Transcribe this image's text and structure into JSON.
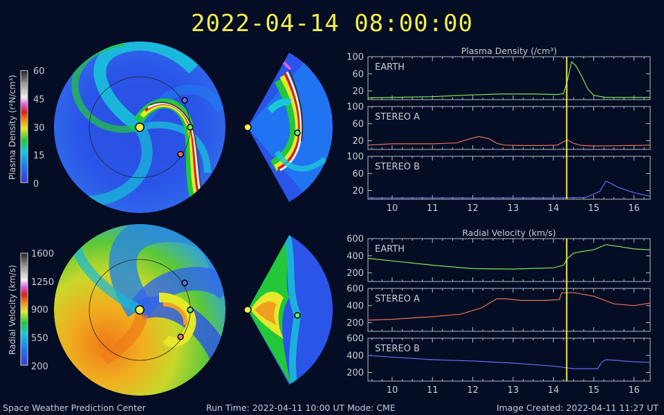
{
  "header": {
    "datetime": "2022-04-14 08:00:00"
  },
  "footer": {
    "org": "Space Weather Prediction Center",
    "run": "Run Time: 2022-04-11 10:00 UT   Mode: CME",
    "created": "Image Created: 2022-04-11 11:27 UT"
  },
  "colorbars": {
    "density": {
      "label": "Plasma Density (r²N/cm³)",
      "ticks": [
        "60",
        "45",
        "30",
        "15",
        "0"
      ]
    },
    "velocity": {
      "label": "Radial Velocity (km/s)",
      "ticks": [
        "1600",
        "1250",
        "900",
        "550",
        "200"
      ]
    }
  },
  "colors": {
    "earth": "#7ee85a",
    "stereo_a": "#e8735a",
    "stereo_b": "#6a6af0",
    "current_time_line": "#f2ee4a",
    "sun": "#f2ee4a"
  },
  "chart_data": [
    {
      "type": "line",
      "title": "Plasma Density (/cm³)",
      "x_ticks": [
        "10",
        "11",
        "12",
        "13",
        "14",
        "15",
        "16"
      ],
      "xlim": [
        9.4,
        16.4
      ],
      "current_time": 14.33,
      "panels": [
        {
          "name": "EARTH",
          "color": "#7ee85a",
          "ylim": [
            0,
            100
          ],
          "y_ticks": [
            "100",
            "60",
            "20"
          ],
          "x": [
            9.4,
            10,
            11,
            12,
            12.7,
            13.5,
            14.1,
            14.25,
            14.35,
            14.45,
            14.55,
            14.7,
            14.85,
            15,
            15.3,
            16,
            16.4
          ],
          "y": [
            4,
            5,
            7,
            11,
            13,
            13,
            12,
            14,
            45,
            88,
            80,
            55,
            25,
            10,
            5,
            5,
            5
          ]
        },
        {
          "name": "STEREO A",
          "color": "#e8735a",
          "ylim": [
            0,
            100
          ],
          "y_ticks": [
            "100",
            "60",
            "20"
          ],
          "x": [
            9.4,
            10,
            11,
            11.6,
            11.9,
            12.15,
            12.4,
            12.6,
            12.8,
            13.2,
            13.8,
            14.1,
            14.25,
            14.35,
            14.5,
            14.7,
            15,
            16,
            16.4
          ],
          "y": [
            10,
            13,
            13,
            15,
            24,
            30,
            25,
            14,
            10,
            9,
            9,
            10,
            18,
            22,
            14,
            9,
            8,
            9,
            10
          ]
        },
        {
          "name": "STEREO B",
          "color": "#6a6af0",
          "ylim": [
            0,
            100
          ],
          "y_ticks": [
            "100",
            "60",
            "20"
          ],
          "x": [
            9.4,
            10,
            11,
            12,
            13,
            14,
            14.8,
            15.15,
            15.3,
            15.4,
            15.6,
            16,
            16.4
          ],
          "y": [
            3,
            3,
            3,
            3,
            3,
            3,
            4,
            18,
            42,
            38,
            28,
            15,
            7
          ]
        }
      ]
    },
    {
      "type": "line",
      "title": "Radial Velocity (km/s)",
      "x_ticks": [
        "10",
        "11",
        "12",
        "13",
        "14",
        "15",
        "16"
      ],
      "xlim": [
        9.4,
        16.4
      ],
      "current_time": 14.33,
      "panels": [
        {
          "name": "EARTH",
          "color": "#7ee85a",
          "ylim": [
            100,
            600
          ],
          "y_ticks": [
            "600",
            "400",
            "200"
          ],
          "x": [
            9.4,
            10,
            11,
            12,
            13,
            14,
            14.25,
            14.35,
            14.5,
            14.7,
            15,
            15.3,
            15.6,
            16,
            16.4
          ],
          "y": [
            370,
            340,
            290,
            250,
            245,
            260,
            290,
            370,
            430,
            450,
            470,
            530,
            510,
            480,
            470
          ]
        },
        {
          "name": "STEREO A",
          "color": "#e8735a",
          "ylim": [
            100,
            600
          ],
          "y_ticks": [
            "600",
            "400",
            "200"
          ],
          "x": [
            9.4,
            10,
            11,
            11.7,
            12.2,
            12.6,
            12.8,
            13.2,
            13.8,
            14.15,
            14.2,
            14.5,
            15,
            15.5,
            16,
            16.4
          ],
          "y": [
            230,
            240,
            270,
            300,
            370,
            480,
            480,
            460,
            460,
            470,
            550,
            550,
            510,
            420,
            400,
            430
          ]
        },
        {
          "name": "STEREO B",
          "color": "#6a6af0",
          "ylim": [
            100,
            600
          ],
          "y_ticks": [
            "600",
            "400",
            "200"
          ],
          "x": [
            9.4,
            10,
            11,
            12,
            13,
            14,
            14.5,
            15.1,
            15.2,
            15.3,
            15.6,
            16,
            16.4
          ],
          "y": [
            400,
            380,
            350,
            335,
            310,
            275,
            245,
            245,
            320,
            350,
            340,
            325,
            320
          ]
        }
      ]
    }
  ]
}
